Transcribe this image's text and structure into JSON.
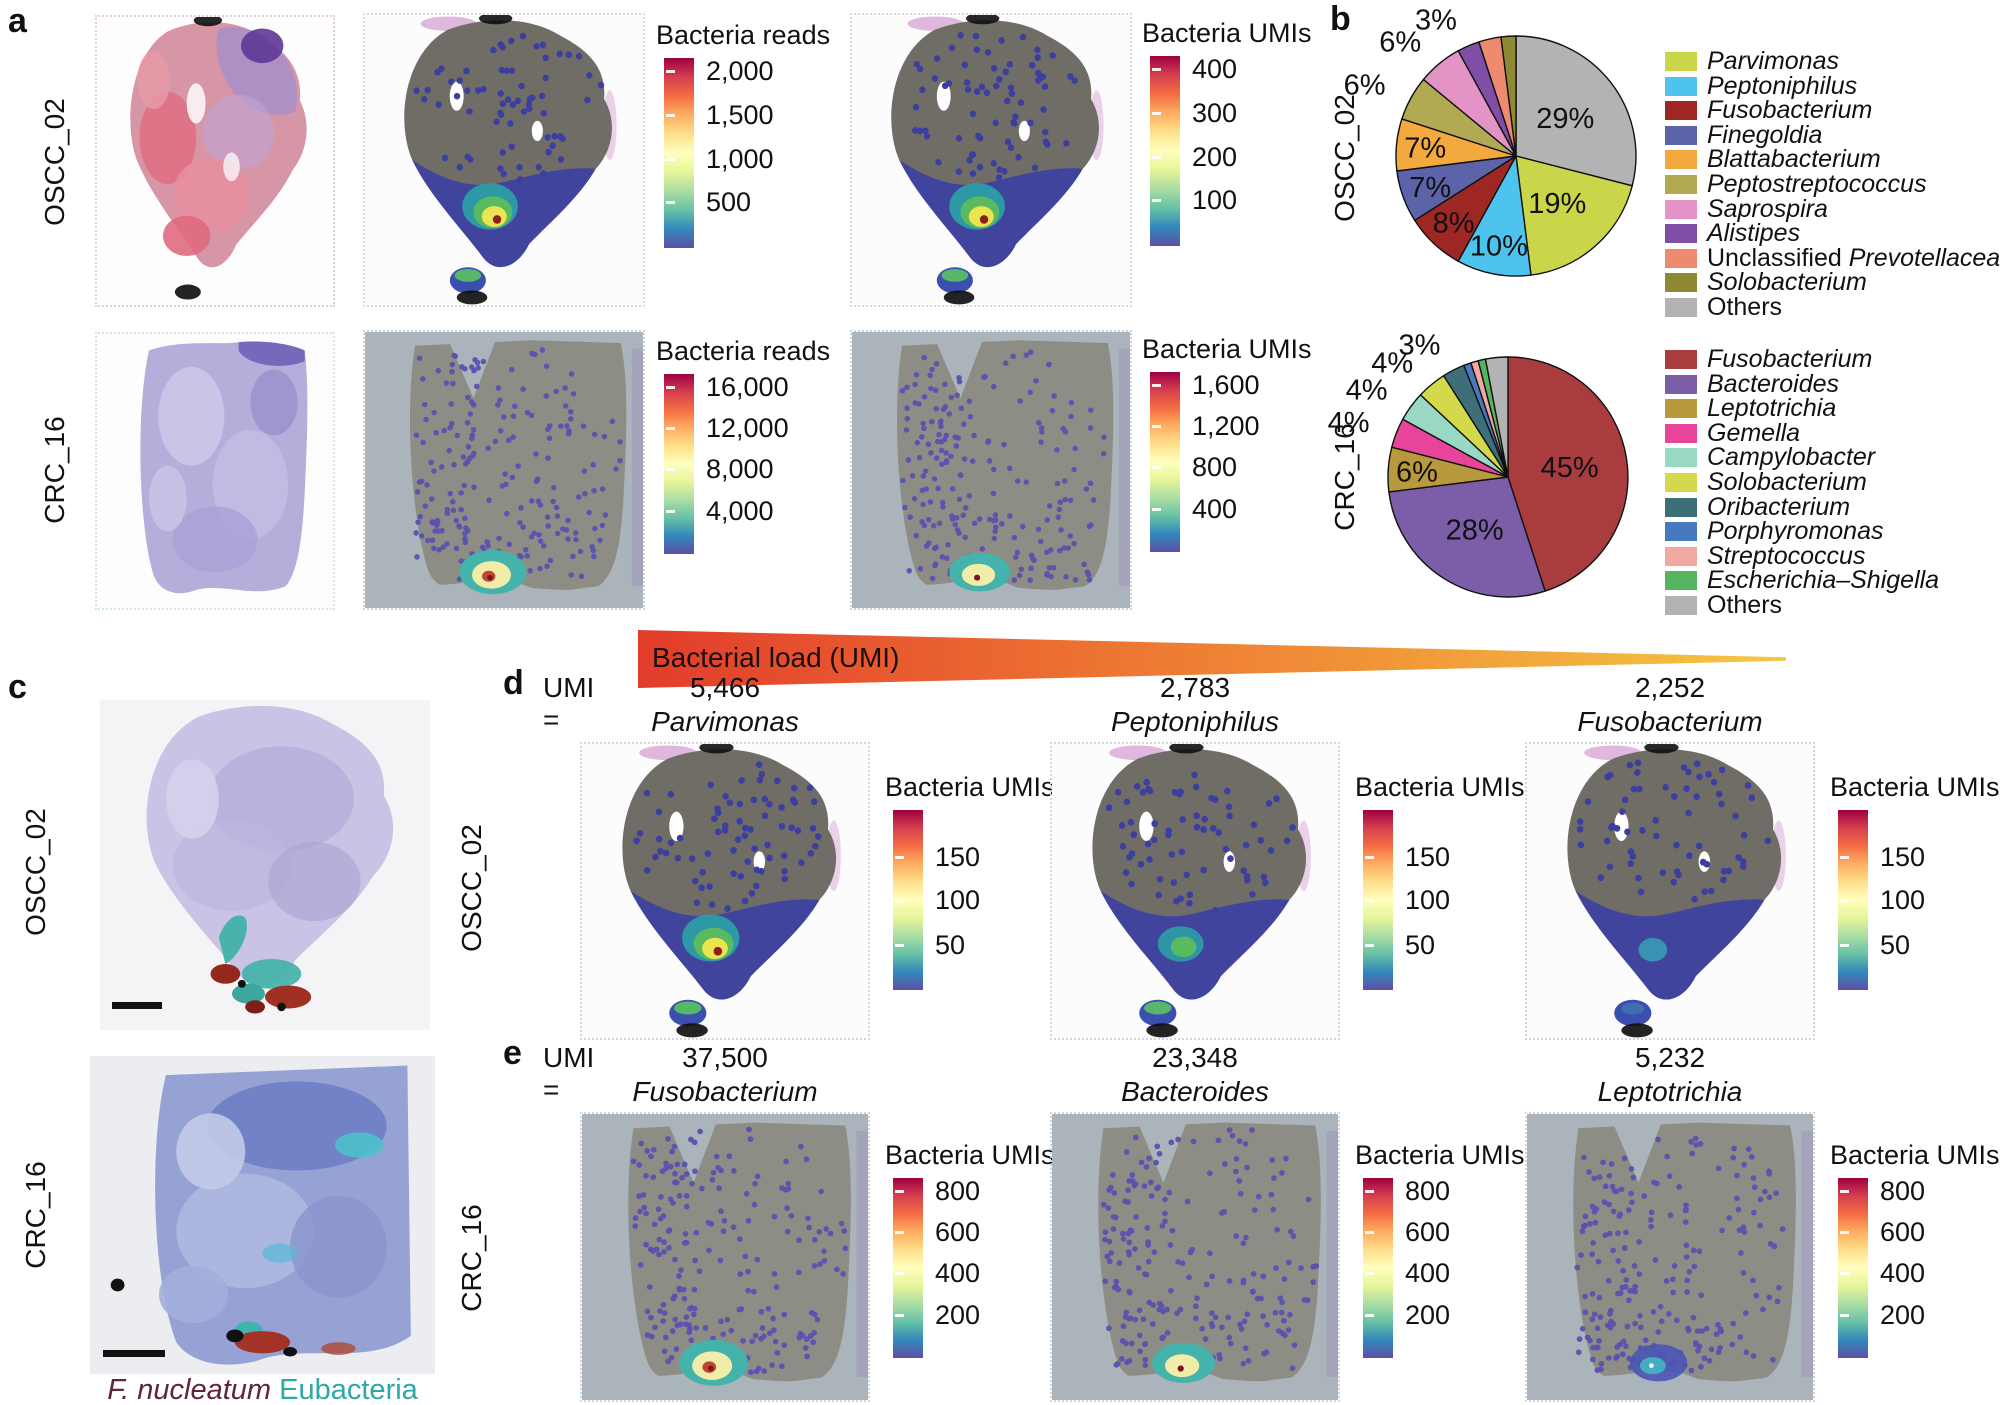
{
  "colors": {
    "spectral": [
      "#9e0142",
      "#d53e4f",
      "#f46d43",
      "#fdae61",
      "#fee08b",
      "#ffffbf",
      "#e6f598",
      "#abdda4",
      "#66c2a5",
      "#3288bd",
      "#5e4fa2"
    ],
    "arrow_start": "#e23c2b",
    "arrow_mid": "#ee7a33",
    "arrow_end": "#f5c843"
  },
  "panel_a": {
    "label": "a",
    "rows": [
      {
        "sample": "OSCC_02",
        "reads_legend": {
          "title": "Bacteria reads",
          "ticks": [
            "2,000",
            "1,500",
            "1,000",
            "500"
          ]
        },
        "umis_legend": {
          "title": "Bacteria UMIs",
          "ticks": [
            "400",
            "300",
            "200",
            "100"
          ]
        }
      },
      {
        "sample": "CRC_16",
        "reads_legend": {
          "title": "Bacteria reads",
          "ticks": [
            "16,000",
            "12,000",
            "8,000",
            "4,000"
          ]
        },
        "umis_legend": {
          "title": "Bacteria UMIs",
          "ticks": [
            "1,600",
            "1,200",
            "800",
            "400"
          ]
        }
      }
    ]
  },
  "panel_b": {
    "label": "b"
  },
  "bacterial_load_arrow": {
    "label": "Bacterial load (UMI)"
  },
  "panel_c": {
    "label": "c",
    "rows": [
      {
        "sample": "OSCC_02"
      },
      {
        "sample": "CRC_16"
      }
    ],
    "caption": [
      {
        "text": "F. nucleatum",
        "italic": true,
        "color": "#5f2633"
      },
      {
        "text": "Eubacteria",
        "italic": false,
        "color": "#2fa7a4"
      }
    ]
  },
  "panel_d": {
    "label": "d",
    "prefix": "UMI =",
    "sample": "OSCC_02",
    "colorbar_title": "Bacteria UMIs",
    "colorbar_ticks": [
      "150",
      "100",
      "50"
    ],
    "columns": [
      {
        "umi": "5,466",
        "taxon": "Parvimonas",
        "hotspot": "high"
      },
      {
        "umi": "2,783",
        "taxon": "Peptoniphilus",
        "hotspot": "medium"
      },
      {
        "umi": "2,252",
        "taxon": "Fusobacterium",
        "hotspot": "low"
      }
    ]
  },
  "panel_e": {
    "label": "e",
    "prefix": "UMI =",
    "sample": "CRC_16",
    "colorbar_title": "Bacteria UMIs",
    "colorbar_ticks": [
      "800",
      "600",
      "400",
      "200"
    ],
    "columns": [
      {
        "umi": "37,500",
        "taxon": "Fusobacterium",
        "hotspot": "high"
      },
      {
        "umi": "23,348",
        "taxon": "Bacteroides",
        "hotspot": "medium"
      },
      {
        "umi": "5,232",
        "taxon": "Leptotrichia",
        "hotspot": "low"
      }
    ]
  },
  "chart_data": [
    {
      "type": "pie",
      "title": "OSCC_02",
      "legend_position": "right",
      "slices": [
        {
          "label": "Others",
          "value": 29,
          "pct_label": "29%",
          "color": "#b3b3b3",
          "label_inside": true
        },
        {
          "label": "Parvimonas",
          "value": 19,
          "pct_label": "19%",
          "color": "#c9d64a",
          "label_inside": true
        },
        {
          "label": "Peptoniphilus",
          "value": 10,
          "pct_label": "10%",
          "color": "#4ec3ed",
          "label_inside": true
        },
        {
          "label": "Fusobacterium",
          "value": 8,
          "pct_label": "8%",
          "color": "#9e2723",
          "label_inside": true
        },
        {
          "label": "Finegoldia",
          "value": 7,
          "pct_label": "7%",
          "color": "#5c63a8",
          "label_inside": true
        },
        {
          "label": "Blattabacterium",
          "value": 7,
          "pct_label": "7%",
          "color": "#f4a93e",
          "label_inside": true
        },
        {
          "label": "Peptostreptococcus",
          "value": 6,
          "pct_label": "6%",
          "color": "#b1aa52",
          "label_inside": false
        },
        {
          "label": "Saprospira",
          "value": 6,
          "pct_label": "6%",
          "color": "#e393c5",
          "label_inside": false
        },
        {
          "label": "Alistipes",
          "value": 3,
          "pct_label": "3%",
          "color": "#7e4fa5",
          "label_inside": false
        },
        {
          "label": "Unclassified Prevotellaceae",
          "value": 3,
          "pct_label": "",
          "color": "#ee8a70",
          "label_inside": false
        },
        {
          "label": "Solobacterium",
          "value": 2,
          "pct_label": "",
          "color": "#8e8a33",
          "label_inside": false
        }
      ],
      "legend_order": [
        "Parvimonas",
        "Peptoniphilus",
        "Fusobacterium",
        "Finegoldia",
        "Blattabacterium",
        "Peptostreptococcus",
        "Saprospira",
        "Alistipes",
        "Unclassified Prevotellaceae",
        "Solobacterium",
        "Others"
      ]
    },
    {
      "type": "pie",
      "title": "CRC_16",
      "legend_position": "right",
      "slices": [
        {
          "label": "Fusobacterium",
          "value": 45,
          "pct_label": "45%",
          "color": "#a93c3e",
          "label_inside": true
        },
        {
          "label": "Bacteroides",
          "value": 28,
          "pct_label": "28%",
          "color": "#7b5ea7",
          "label_inside": true
        },
        {
          "label": "Leptotrichia",
          "value": 6,
          "pct_label": "6%",
          "color": "#b9993d",
          "label_inside": true
        },
        {
          "label": "Gemella",
          "value": 4,
          "pct_label": "4%",
          "color": "#e8459a",
          "label_inside": false
        },
        {
          "label": "Campylobacter",
          "value": 4,
          "pct_label": "4%",
          "color": "#99d8c4",
          "label_inside": false
        },
        {
          "label": "Solobacterium",
          "value": 4,
          "pct_label": "4%",
          "color": "#d3d94b",
          "label_inside": false
        },
        {
          "label": "Oribacterium",
          "value": 3,
          "pct_label": "3%",
          "color": "#3e6f79",
          "label_inside": false
        },
        {
          "label": "Porphyromonas",
          "value": 1,
          "pct_label": "",
          "color": "#4679bd",
          "label_inside": false
        },
        {
          "label": "Streptococcus",
          "value": 1,
          "pct_label": "",
          "color": "#f0a8a0",
          "label_inside": false
        },
        {
          "label": "Escherichia–Shigella",
          "value": 1,
          "pct_label": "",
          "color": "#56b35f",
          "label_inside": false
        },
        {
          "label": "Others",
          "value": 3,
          "pct_label": "",
          "color": "#b3b3b3",
          "label_inside": false
        }
      ],
      "legend_order": [
        "Fusobacterium",
        "Bacteroides",
        "Leptotrichia",
        "Gemella",
        "Campylobacter",
        "Solobacterium",
        "Oribacterium",
        "Porphyromonas",
        "Streptococcus",
        "Escherichia–Shigella",
        "Others"
      ]
    }
  ]
}
